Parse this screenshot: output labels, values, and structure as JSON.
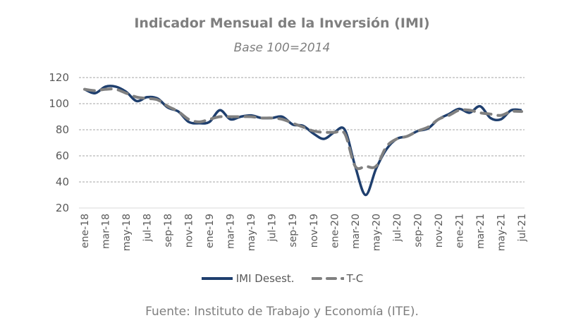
{
  "chart_data": {
    "type": "line",
    "title": "Indicador Mensual de la Inversión (IMI)",
    "subtitle": "Base 100=2014",
    "xlabel": "",
    "ylabel": "",
    "ylim": [
      20,
      120
    ],
    "yticks": [
      20,
      40,
      60,
      80,
      100,
      120
    ],
    "grid": true,
    "legend_position": "bottom",
    "x": [
      "ene-18",
      "feb-18",
      "mar-18",
      "abr-18",
      "may-18",
      "jun-18",
      "jul-18",
      "ago-18",
      "sep-18",
      "oct-18",
      "nov-18",
      "dic-18",
      "ene-19",
      "feb-19",
      "mar-19",
      "abr-19",
      "may-19",
      "jun-19",
      "jul-19",
      "ago-19",
      "sep-19",
      "oct-19",
      "nov-19",
      "dic-19",
      "ene-20",
      "feb-20",
      "mar-20",
      "abr-20",
      "may-20",
      "jun-20",
      "jul-20",
      "ago-20",
      "sep-20",
      "oct-20",
      "nov-20",
      "dic-20",
      "ene-21",
      "feb-21",
      "mar-21",
      "abr-21",
      "may-21",
      "jun-21",
      "jul-21"
    ],
    "xtick_labels": [
      "ene-18",
      "mar-18",
      "may-18",
      "jul-18",
      "sep-18",
      "nov-18",
      "ene-19",
      "mar-19",
      "may-19",
      "jul-19",
      "sep-19",
      "nov-19",
      "ene-20",
      "mar-20",
      "may-20",
      "jul-20",
      "sep-20",
      "nov-20",
      "ene-21",
      "mar-21",
      "may-21",
      "jul-21"
    ],
    "series": [
      {
        "name": "IMI Desest.",
        "color": "#1f3f6e",
        "style": "solid",
        "values": [
          111,
          108,
          113,
          113,
          109,
          102,
          105,
          104,
          97,
          94,
          86,
          85,
          86,
          95,
          88,
          90,
          91,
          89,
          89,
          90,
          84,
          83,
          77,
          73,
          78,
          80,
          52,
          30,
          50,
          65,
          73,
          75,
          79,
          81,
          88,
          92,
          96,
          93,
          98,
          89,
          88,
          95,
          95
        ]
      },
      {
        "name": "T-C",
        "color": "#808080",
        "style": "dashed",
        "values": [
          111,
          110,
          111,
          111,
          108,
          105,
          104,
          103,
          98,
          94,
          88,
          86,
          88,
          90,
          90,
          90,
          90,
          89,
          89,
          88,
          85,
          82,
          79,
          78,
          78,
          77,
          52,
          52,
          52,
          67,
          73,
          75,
          79,
          82,
          88,
          91,
          95,
          95,
          93,
          92,
          91,
          94,
          94
        ]
      }
    ]
  },
  "legend": {
    "items": [
      {
        "label": "IMI Desest."
      },
      {
        "label": "T-C"
      }
    ]
  },
  "source": "Fuente: Instituto de Trabajo y Economía (ITE)."
}
